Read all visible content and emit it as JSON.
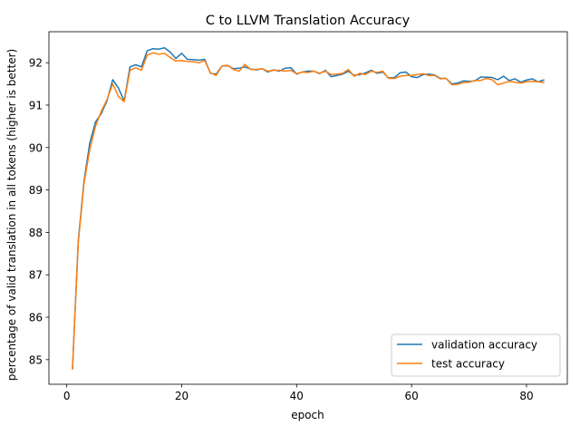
{
  "chart_data": {
    "type": "line",
    "title": "C to LLVM Translation Accuracy",
    "xlabel": "epoch",
    "ylabel": "percentage of valid translation in all tokens (higher is better)",
    "xlim": [
      -3.1,
      87.1
    ],
    "ylim": [
      84.42,
      92.73
    ],
    "xticks": [
      0,
      20,
      40,
      60,
      80
    ],
    "yticks": [
      85,
      86,
      87,
      88,
      89,
      90,
      91,
      92
    ],
    "grid": false,
    "legend_position": "lower-right",
    "x": [
      1,
      2,
      3,
      4,
      5,
      6,
      7,
      8,
      9,
      10,
      11,
      12,
      13,
      14,
      15,
      16,
      17,
      18,
      19,
      20,
      21,
      22,
      23,
      24,
      25,
      26,
      27,
      28,
      29,
      30,
      31,
      32,
      33,
      34,
      35,
      36,
      37,
      38,
      39,
      40,
      41,
      42,
      43,
      44,
      45,
      46,
      47,
      48,
      49,
      50,
      51,
      52,
      53,
      54,
      55,
      56,
      57,
      58,
      59,
      60,
      61,
      62,
      63,
      64,
      65,
      66,
      67,
      68,
      69,
      70,
      71,
      72,
      73,
      74,
      75,
      76,
      77,
      78,
      79,
      80,
      81,
      82,
      83
    ],
    "series": [
      {
        "name": "validation accuracy",
        "color": "#1f77b4",
        "values": [
          84.8,
          87.8,
          89.2,
          90.1,
          90.6,
          90.8,
          91.1,
          91.6,
          91.4,
          91.1,
          91.9,
          91.95,
          91.9,
          92.28,
          92.33,
          92.32,
          92.35,
          92.25,
          92.1,
          92.22,
          92.08,
          92.07,
          92.06,
          92.08,
          91.75,
          91.73,
          91.92,
          91.93,
          91.86,
          91.87,
          91.9,
          91.85,
          91.83,
          91.86,
          91.78,
          91.83,
          91.8,
          91.87,
          91.88,
          91.73,
          91.78,
          91.8,
          91.8,
          91.74,
          91.82,
          91.67,
          91.7,
          91.73,
          91.8,
          91.7,
          91.72,
          91.76,
          91.82,
          91.75,
          91.78,
          91.64,
          91.65,
          91.76,
          91.78,
          91.67,
          91.65,
          91.72,
          91.73,
          91.71,
          91.63,
          91.63,
          91.5,
          91.52,
          91.57,
          91.56,
          91.57,
          91.66,
          91.66,
          91.65,
          91.6,
          91.68,
          91.58,
          91.62,
          91.54,
          91.59,
          91.62,
          91.55,
          91.59
        ]
      },
      {
        "name": "test accuracy",
        "color": "#ff7f0e",
        "values": [
          84.78,
          87.75,
          89.15,
          89.95,
          90.5,
          90.85,
          91.13,
          91.5,
          91.2,
          91.08,
          91.82,
          91.88,
          91.82,
          92.18,
          92.23,
          92.2,
          92.22,
          92.12,
          92.04,
          92.05,
          92.03,
          92.02,
          92.0,
          92.05,
          91.76,
          91.7,
          91.92,
          91.94,
          91.84,
          91.8,
          91.96,
          91.84,
          91.84,
          91.86,
          91.8,
          91.82,
          91.82,
          91.8,
          91.82,
          91.74,
          91.78,
          91.77,
          91.8,
          91.75,
          91.8,
          91.72,
          91.73,
          91.75,
          91.84,
          91.68,
          91.75,
          91.72,
          91.8,
          91.77,
          91.8,
          91.63,
          91.63,
          91.68,
          91.7,
          91.7,
          91.72,
          91.74,
          91.7,
          91.7,
          91.62,
          91.63,
          91.48,
          91.49,
          91.53,
          91.54,
          91.58,
          91.58,
          91.63,
          91.6,
          91.48,
          91.52,
          91.56,
          91.54,
          91.52,
          91.55,
          91.56,
          91.55,
          91.53
        ]
      }
    ]
  }
}
